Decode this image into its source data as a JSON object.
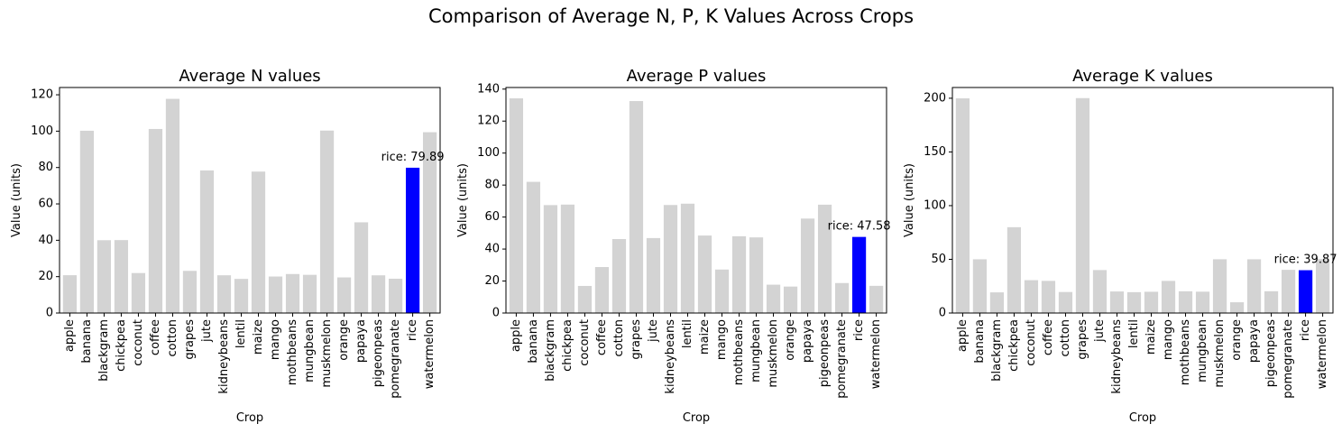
{
  "figure": {
    "suptitle": "Comparison of Average N, P, K Values Across Crops"
  },
  "colors": {
    "bar_default": "#d3d3d3",
    "bar_highlight": "#0000ff"
  },
  "chart_data": [
    {
      "type": "bar",
      "title": "Average N values",
      "xlabel": "Crop",
      "ylabel": "Value (units)",
      "ylim": [
        0,
        124
      ],
      "yticks": [
        0,
        20,
        40,
        60,
        80,
        100,
        120
      ],
      "categories": [
        "apple",
        "banana",
        "blackgram",
        "chickpea",
        "coconut",
        "coffee",
        "cotton",
        "grapes",
        "jute",
        "kidneybeans",
        "lentil",
        "maize",
        "mango",
        "mothbeans",
        "mungbean",
        "muskmelon",
        "orange",
        "papaya",
        "pigeonpeas",
        "pomegranate",
        "rice",
        "watermelon"
      ],
      "values": [
        20.8,
        100.23,
        40.02,
        40.09,
        21.98,
        101.2,
        117.77,
        23.18,
        78.4,
        20.75,
        18.77,
        77.76,
        20.07,
        21.44,
        20.99,
        100.32,
        19.58,
        49.88,
        20.73,
        18.87,
        79.89,
        99.42
      ],
      "highlight": {
        "category": "rice",
        "label": "rice: 79.89"
      }
    },
    {
      "type": "bar",
      "title": "Average P values",
      "xlabel": "Crop",
      "ylabel": "Value (units)",
      "ylim": [
        0,
        141
      ],
      "yticks": [
        0,
        20,
        40,
        60,
        80,
        100,
        120,
        140
      ],
      "categories": [
        "apple",
        "banana",
        "blackgram",
        "chickpea",
        "coconut",
        "coffee",
        "cotton",
        "grapes",
        "jute",
        "kidneybeans",
        "lentil",
        "maize",
        "mango",
        "mothbeans",
        "mungbean",
        "muskmelon",
        "orange",
        "papaya",
        "pigeonpeas",
        "pomegranate",
        "rice",
        "watermelon"
      ],
      "values": [
        134.22,
        82.01,
        67.47,
        67.79,
        16.93,
        28.74,
        46.24,
        132.53,
        46.86,
        67.54,
        68.36,
        48.44,
        27.18,
        48.01,
        47.28,
        17.72,
        16.55,
        59.05,
        67.73,
        18.75,
        47.58,
        17.0
      ],
      "highlight": {
        "category": "rice",
        "label": "rice: 47.58"
      }
    },
    {
      "type": "bar",
      "title": "Average K values",
      "xlabel": "Crop",
      "ylabel": "Value (units)",
      "ylim": [
        0,
        210
      ],
      "yticks": [
        0,
        50,
        100,
        150,
        200
      ],
      "categories": [
        "apple",
        "banana",
        "blackgram",
        "chickpea",
        "coconut",
        "coffee",
        "cotton",
        "grapes",
        "jute",
        "kidneybeans",
        "lentil",
        "maize",
        "mango",
        "mothbeans",
        "mungbean",
        "muskmelon",
        "orange",
        "papaya",
        "pigeonpeas",
        "pomegranate",
        "rice",
        "watermelon"
      ],
      "values": [
        199.89,
        50.05,
        19.24,
        79.92,
        30.59,
        29.94,
        19.56,
        200.11,
        39.99,
        20.05,
        19.41,
        19.79,
        29.92,
        20.23,
        19.87,
        50.08,
        10.01,
        50.04,
        20.29,
        40.21,
        39.87,
        50.22
      ],
      "highlight": {
        "category": "rice",
        "label": "rice: 39.87"
      }
    }
  ]
}
